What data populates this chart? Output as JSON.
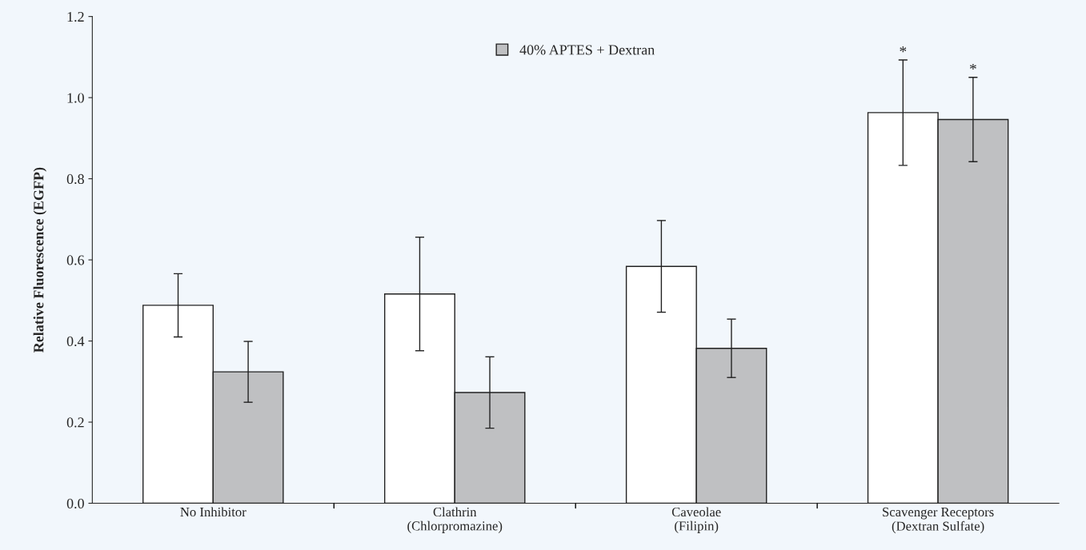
{
  "chart_data": {
    "type": "bar",
    "ylabel": "Relative Fluorescence (EGFP)",
    "categories": [
      "No Inhibitor",
      "Clathrin\n(Chlorpromazine)",
      "Caveolae\n(Filipin)",
      "Scavenger Receptors\n(Dextran Sulfate)"
    ],
    "series": [
      {
        "color": "#ffffff",
        "values": [
          0.488,
          0.516,
          0.584,
          0.963
        ],
        "errors": [
          0.078,
          0.14,
          0.113,
          0.13
        ]
      },
      {
        "name": "40% APTES + Dextran",
        "color": "#bfc0c2",
        "values": [
          0.324,
          0.273,
          0.382,
          0.946
        ],
        "errors": [
          0.075,
          0.088,
          0.072,
          0.104
        ]
      }
    ],
    "annotations": [
      "*",
      "*"
    ],
    "ylim": [
      0,
      1.2
    ],
    "yticks": [
      {
        "value": 0,
        "label": "0.0"
      },
      {
        "value": 0.2,
        "label": "0.2"
      },
      {
        "value": 0.4,
        "label": "0.4"
      },
      {
        "value": 0.6,
        "label": "0.6"
      },
      {
        "value": 0.8,
        "label": "0.8"
      },
      {
        "value": 1.0,
        "label": "1.0"
      },
      {
        "value": 1.2,
        "label": "1.2"
      }
    ],
    "grid": false,
    "legend": "top"
  }
}
